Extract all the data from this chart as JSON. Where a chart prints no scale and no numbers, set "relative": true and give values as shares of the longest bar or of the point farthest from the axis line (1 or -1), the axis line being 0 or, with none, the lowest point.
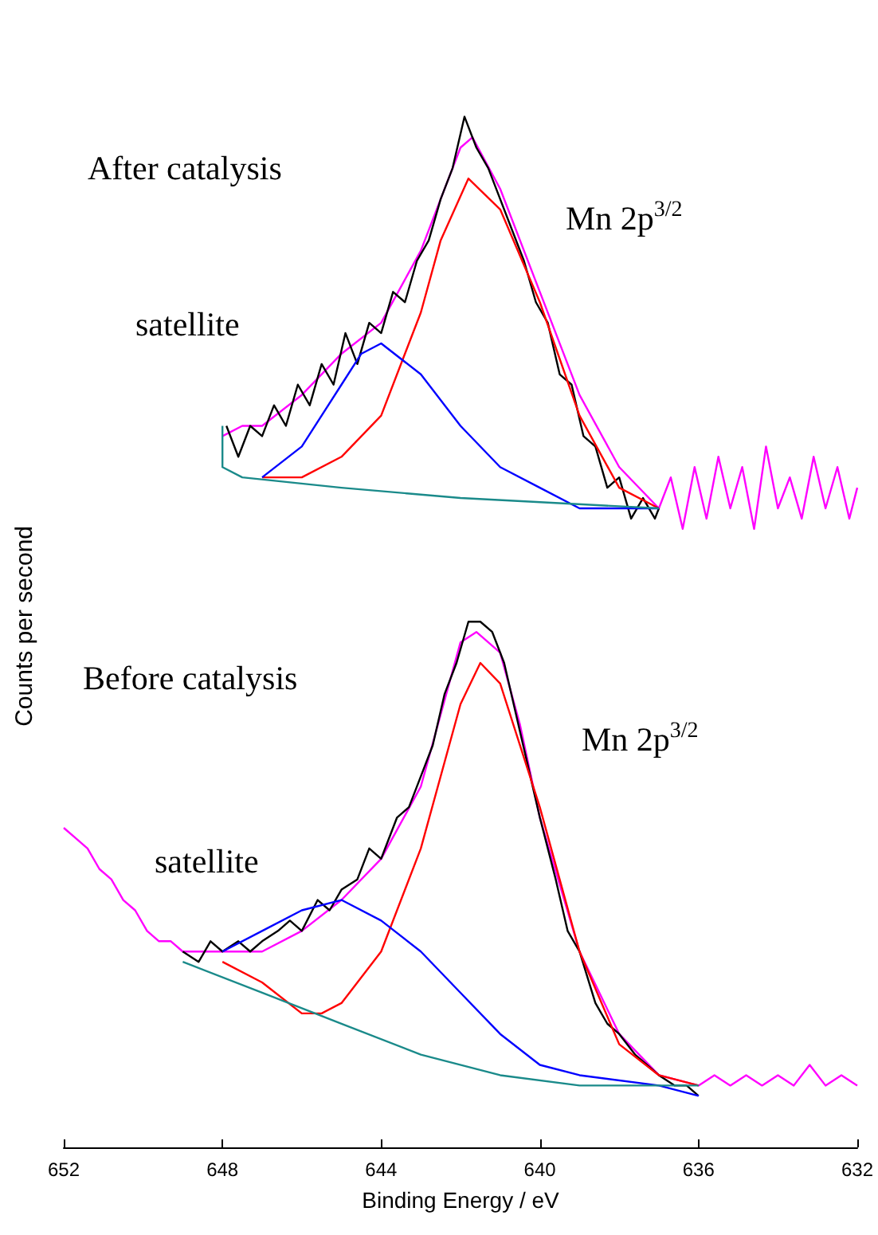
{
  "chart_data": {
    "type": "line",
    "relative": true,
    "xlabel": "Binding Energy / eV",
    "ylabel": "Counts per second",
    "xlim": [
      652,
      632
    ],
    "xticks": [
      652,
      648,
      644,
      640,
      636,
      632
    ],
    "marker": "none",
    "annotations": [
      "After catalysis",
      "satellite",
      "Mn 2p$^{3/2}$",
      "Before catalysis",
      "satellite",
      "Mn 2p$^{3/2}$"
    ],
    "series": [
      {
        "color": "#ff00ff",
        "x": [
          648,
          647.5,
          647,
          646,
          645,
          644,
          643,
          642.5,
          642,
          641.7,
          641,
          640,
          639,
          638,
          637,
          636.7,
          636.4,
          636.1,
          635.8,
          635.5,
          635.2,
          634.9,
          634.6,
          634.3,
          634,
          633.7,
          633.4,
          633.1,
          632.8,
          632.5,
          632.2,
          632
        ],
        "values": [
          0.69,
          0.7,
          0.7,
          0.73,
          0.77,
          0.8,
          0.87,
          0.92,
          0.97,
          0.98,
          0.93,
          0.83,
          0.73,
          0.66,
          0.62,
          0.65,
          0.6,
          0.66,
          0.61,
          0.67,
          0.62,
          0.66,
          0.6,
          0.68,
          0.62,
          0.65,
          0.61,
          0.67,
          0.62,
          0.66,
          0.61,
          0.64
        ]
      },
      {
        "color": "#000000",
        "x": [
          647.9,
          647.6,
          647.3,
          647,
          646.7,
          646.4,
          646.1,
          645.8,
          645.5,
          645.2,
          644.9,
          644.6,
          644.3,
          644,
          643.7,
          643.4,
          643.1,
          642.8,
          642.5,
          642.2,
          641.9,
          641.6,
          641.3,
          641,
          640.7,
          640.4,
          640.1,
          639.8,
          639.5,
          639.2,
          638.9,
          638.6,
          638.3,
          638,
          637.7,
          637.4,
          637.1,
          637
        ],
        "values": [
          0.7,
          0.67,
          0.7,
          0.69,
          0.72,
          0.7,
          0.74,
          0.72,
          0.76,
          0.74,
          0.79,
          0.76,
          0.8,
          0.79,
          0.83,
          0.82,
          0.86,
          0.88,
          0.92,
          0.95,
          1.0,
          0.97,
          0.95,
          0.92,
          0.89,
          0.86,
          0.82,
          0.8,
          0.75,
          0.74,
          0.69,
          0.68,
          0.64,
          0.65,
          0.61,
          0.63,
          0.61,
          0.62
        ]
      },
      {
        "color": "#ff0000",
        "x": [
          647,
          646,
          645,
          644,
          643,
          642.5,
          641.8,
          641,
          640,
          639,
          638,
          637
        ],
        "values": [
          0.65,
          0.65,
          0.67,
          0.71,
          0.81,
          0.88,
          0.94,
          0.91,
          0.82,
          0.71,
          0.64,
          0.62
        ]
      },
      {
        "color": "#0000ff",
        "x": [
          647,
          646,
          645,
          644.5,
          644,
          643,
          642,
          641,
          640,
          639,
          637
        ],
        "values": [
          0.65,
          0.68,
          0.74,
          0.77,
          0.78,
          0.75,
          0.7,
          0.66,
          0.64,
          0.62,
          0.62
        ]
      },
      {
        "color": "#1a8a8a",
        "x": [
          648,
          648,
          647.5,
          645,
          642,
          637
        ],
        "values": [
          0.7,
          0.66,
          0.65,
          0.64,
          0.63,
          0.62
        ]
      },
      {
        "color": "#ff00ff",
        "x": [
          652,
          651.7,
          651.4,
          651.1,
          650.8,
          650.5,
          650.2,
          649.9,
          649.6,
          649.3,
          649,
          648,
          647,
          646,
          645,
          644,
          643,
          642.5,
          642,
          641.6,
          641,
          640.5,
          640,
          639,
          638,
          637,
          636,
          635.6,
          635.2,
          634.8,
          634.4,
          634,
          633.6,
          633.2,
          632.8,
          632.4,
          632
        ],
        "values": [
          0.31,
          0.3,
          0.29,
          0.27,
          0.26,
          0.24,
          0.23,
          0.21,
          0.2,
          0.2,
          0.19,
          0.19,
          0.19,
          0.21,
          0.24,
          0.28,
          0.35,
          0.42,
          0.49,
          0.5,
          0.48,
          0.41,
          0.32,
          0.19,
          0.11,
          0.07,
          0.06,
          0.07,
          0.06,
          0.07,
          0.06,
          0.07,
          0.06,
          0.08,
          0.06,
          0.07,
          0.06
        ]
      },
      {
        "color": "#000000",
        "x": [
          649,
          648.6,
          648.3,
          648,
          647.6,
          647.3,
          647,
          646.6,
          646.3,
          646,
          645.6,
          645.3,
          645,
          644.6,
          644.3,
          644,
          643.6,
          643.3,
          643,
          642.7,
          642.4,
          642.1,
          641.8,
          641.5,
          641.2,
          640.9,
          640.6,
          640.3,
          640,
          639.6,
          639.3,
          639,
          638.6,
          638.3,
          638,
          637.6,
          637.3,
          637,
          636.6,
          636.3,
          636
        ],
        "values": [
          0.19,
          0.18,
          0.2,
          0.19,
          0.2,
          0.19,
          0.2,
          0.21,
          0.22,
          0.21,
          0.24,
          0.23,
          0.25,
          0.26,
          0.29,
          0.28,
          0.32,
          0.33,
          0.36,
          0.39,
          0.44,
          0.47,
          0.51,
          0.51,
          0.5,
          0.47,
          0.42,
          0.37,
          0.32,
          0.26,
          0.21,
          0.19,
          0.14,
          0.12,
          0.11,
          0.09,
          0.08,
          0.07,
          0.06,
          0.06,
          0.05
        ]
      },
      {
        "color": "#ff0000",
        "x": [
          648,
          647,
          646,
          645.5,
          645,
          644,
          643,
          642,
          641.5,
          641,
          640,
          639,
          638,
          637,
          636
        ],
        "values": [
          0.18,
          0.16,
          0.13,
          0.13,
          0.14,
          0.19,
          0.29,
          0.43,
          0.47,
          0.45,
          0.33,
          0.19,
          0.1,
          0.07,
          0.06
        ]
      },
      {
        "color": "#0000ff",
        "x": [
          648,
          647,
          646,
          645,
          644,
          643,
          642,
          641,
          640,
          639,
          637,
          636
        ],
        "values": [
          0.19,
          0.21,
          0.23,
          0.24,
          0.22,
          0.19,
          0.15,
          0.11,
          0.08,
          0.07,
          0.06,
          0.05
        ]
      },
      {
        "color": "#1a8a8a",
        "x": [
          649,
          647,
          645,
          643,
          641,
          639,
          636
        ],
        "values": [
          0.18,
          0.15,
          0.12,
          0.09,
          0.07,
          0.06,
          0.06
        ]
      }
    ]
  }
}
